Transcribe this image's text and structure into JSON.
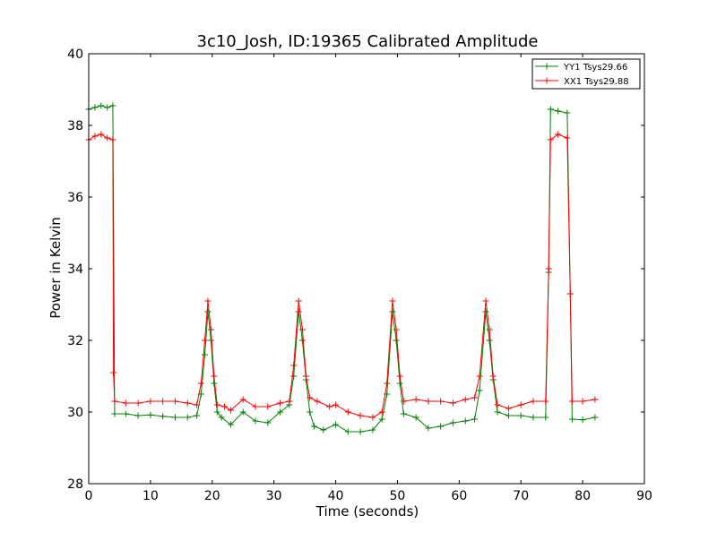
{
  "chart_data": {
    "type": "line",
    "title": "3c10_Josh, ID:19365 Calibrated Amplitude",
    "xlabel": "Time (seconds)",
    "ylabel": "Power in Kelvin",
    "xlim": [
      0,
      90
    ],
    "ylim": [
      28,
      40
    ],
    "xticks": [
      "0",
      "10",
      "20",
      "30",
      "40",
      "50",
      "60",
      "70",
      "80",
      "90"
    ],
    "yticks": [
      "28",
      "30",
      "32",
      "34",
      "36",
      "38",
      "40"
    ],
    "grid": false,
    "legend_position": "top-right",
    "series": [
      {
        "name": "YY1 Tsys29.66",
        "color": "#008000",
        "marker": "+",
        "points": [
          [
            0,
            38.45
          ],
          [
            1,
            38.5
          ],
          [
            2,
            38.55
          ],
          [
            3,
            38.5
          ],
          [
            3.9,
            38.55
          ],
          [
            4.2,
            29.95
          ],
          [
            6,
            29.95
          ],
          [
            8,
            29.9
          ],
          [
            10,
            29.92
          ],
          [
            12,
            29.88
          ],
          [
            14,
            29.85
          ],
          [
            16,
            29.85
          ],
          [
            17.5,
            29.9
          ],
          [
            18.2,
            30.5
          ],
          [
            18.8,
            31.6
          ],
          [
            19.3,
            32.8
          ],
          [
            19.8,
            32.0
          ],
          [
            20.3,
            30.8
          ],
          [
            20.8,
            30.0
          ],
          [
            21.5,
            29.85
          ],
          [
            23,
            29.65
          ],
          [
            25,
            30.0
          ],
          [
            27,
            29.75
          ],
          [
            29,
            29.7
          ],
          [
            31,
            30.0
          ],
          [
            32.5,
            30.2
          ],
          [
            33.2,
            31.0
          ],
          [
            34,
            32.8
          ],
          [
            34.6,
            32.0
          ],
          [
            35.2,
            30.9
          ],
          [
            35.8,
            30.0
          ],
          [
            36.5,
            29.6
          ],
          [
            38,
            29.5
          ],
          [
            40,
            29.65
          ],
          [
            42,
            29.45
          ],
          [
            44,
            29.45
          ],
          [
            46,
            29.5
          ],
          [
            47.5,
            29.8
          ],
          [
            48.3,
            30.5
          ],
          [
            49.2,
            32.8
          ],
          [
            49.8,
            32.0
          ],
          [
            50.4,
            30.8
          ],
          [
            51,
            29.95
          ],
          [
            53,
            29.85
          ],
          [
            55,
            29.55
          ],
          [
            57,
            29.6
          ],
          [
            59,
            29.7
          ],
          [
            61,
            29.75
          ],
          [
            62.5,
            29.8
          ],
          [
            63.3,
            30.6
          ],
          [
            64.3,
            32.8
          ],
          [
            64.9,
            32.0
          ],
          [
            65.5,
            30.9
          ],
          [
            66.2,
            30.0
          ],
          [
            68,
            29.9
          ],
          [
            70,
            29.9
          ],
          [
            72,
            29.85
          ],
          [
            74,
            29.85
          ],
          [
            74.5,
            33.9
          ],
          [
            74.8,
            38.45
          ],
          [
            76,
            38.4
          ],
          [
            77.5,
            38.35
          ],
          [
            78,
            33.3
          ],
          [
            78.3,
            29.8
          ],
          [
            80,
            29.78
          ],
          [
            82,
            29.85
          ]
        ]
      },
      {
        "name": "XX1 Tsys29.88",
        "color": "#ff0000",
        "marker": "+",
        "points": [
          [
            0,
            37.6
          ],
          [
            1,
            37.7
          ],
          [
            2,
            37.75
          ],
          [
            3,
            37.65
          ],
          [
            3.9,
            37.6
          ],
          [
            4.0,
            31.1
          ],
          [
            4.2,
            30.3
          ],
          [
            6,
            30.25
          ],
          [
            8,
            30.25
          ],
          [
            10,
            30.3
          ],
          [
            12,
            30.3
          ],
          [
            14,
            30.3
          ],
          [
            16,
            30.25
          ],
          [
            17.5,
            30.2
          ],
          [
            18.2,
            30.8
          ],
          [
            18.8,
            32.0
          ],
          [
            19.3,
            33.1
          ],
          [
            19.8,
            32.3
          ],
          [
            20.3,
            31.0
          ],
          [
            20.8,
            30.2
          ],
          [
            22,
            30.15
          ],
          [
            23,
            30.05
          ],
          [
            25,
            30.35
          ],
          [
            27,
            30.15
          ],
          [
            29,
            30.15
          ],
          [
            31,
            30.25
          ],
          [
            32.5,
            30.3
          ],
          [
            33.2,
            31.3
          ],
          [
            34,
            33.1
          ],
          [
            34.6,
            32.3
          ],
          [
            35.2,
            31.0
          ],
          [
            35.8,
            30.4
          ],
          [
            37,
            30.3
          ],
          [
            39,
            30.15
          ],
          [
            40,
            30.2
          ],
          [
            42,
            30.0
          ],
          [
            44,
            29.9
          ],
          [
            46,
            29.85
          ],
          [
            47.5,
            30.0
          ],
          [
            48.3,
            30.8
          ],
          [
            49.2,
            33.1
          ],
          [
            49.8,
            32.3
          ],
          [
            50.4,
            31.0
          ],
          [
            51,
            30.3
          ],
          [
            53,
            30.35
          ],
          [
            55,
            30.3
          ],
          [
            57,
            30.3
          ],
          [
            59,
            30.25
          ],
          [
            61,
            30.35
          ],
          [
            62.5,
            30.4
          ],
          [
            63.3,
            31.0
          ],
          [
            64.3,
            33.1
          ],
          [
            64.9,
            32.3
          ],
          [
            65.5,
            31.0
          ],
          [
            66.2,
            30.2
          ],
          [
            68,
            30.1
          ],
          [
            70,
            30.2
          ],
          [
            72,
            30.3
          ],
          [
            74,
            30.3
          ],
          [
            74.5,
            34.0
          ],
          [
            74.8,
            37.6
          ],
          [
            76,
            37.75
          ],
          [
            77.5,
            37.65
          ],
          [
            78,
            33.3
          ],
          [
            78.3,
            30.3
          ],
          [
            80,
            30.3
          ],
          [
            82,
            30.35
          ]
        ]
      }
    ]
  }
}
